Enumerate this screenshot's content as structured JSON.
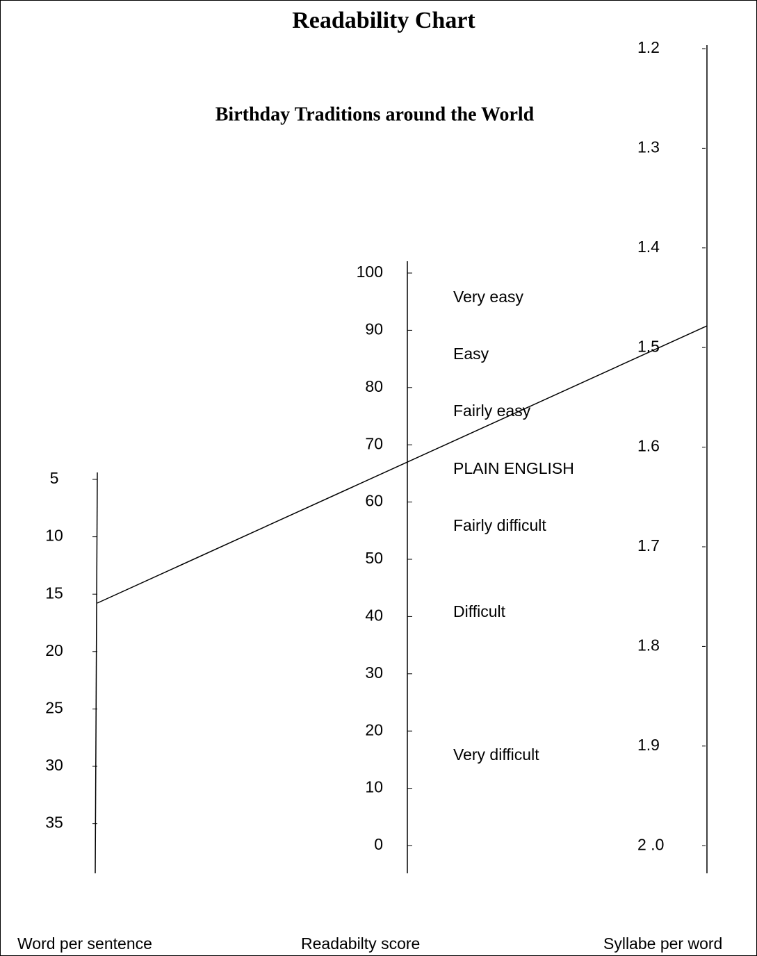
{
  "title": "Readability Chart",
  "subtitle": "Birthday Traditions around the World",
  "scales": [
    {
      "label": "Word per sentence",
      "ticks": [
        "5",
        "10",
        "15",
        "20",
        "25",
        "30",
        "35"
      ]
    },
    {
      "label": "Readabilty score",
      "ticks": [
        "100",
        "90",
        "80",
        "70",
        "60",
        "50",
        "40",
        "30",
        "20",
        "10",
        "0"
      ]
    },
    {
      "label": "Syllabe per word",
      "ticks": [
        "1.2",
        "1.3",
        "1.4",
        "1.5",
        "1.6",
        "1.7",
        "1.8",
        "1.9",
        "2 .0"
      ]
    }
  ],
  "bands": [
    "Very easy",
    "Easy",
    "Fairly easy",
    "PLAIN ENGLISH",
    "Fairly difficult",
    "Difficult",
    "Very difficult"
  ]
}
